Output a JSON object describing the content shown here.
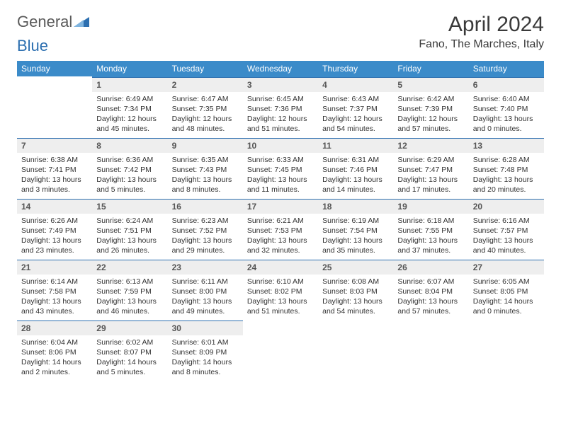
{
  "brand": {
    "general": "General",
    "blue": "Blue"
  },
  "title": "April 2024",
  "location": "Fano, The Marches, Italy",
  "colors": {
    "header_bg": "#3b8bc9",
    "header_text": "#ffffff",
    "daynum_bg": "#eeeeee",
    "daynum_text": "#555555",
    "body_text": "#333333",
    "rule": "#2c6fb0",
    "logo_gray": "#5a5a5a",
    "logo_blue": "#2c6fb0"
  },
  "weekdays": [
    "Sunday",
    "Monday",
    "Tuesday",
    "Wednesday",
    "Thursday",
    "Friday",
    "Saturday"
  ],
  "weeks": [
    [
      null,
      {
        "n": "1",
        "sr": "6:49 AM",
        "ss": "7:34 PM",
        "dl": "12 hours and 45 minutes."
      },
      {
        "n": "2",
        "sr": "6:47 AM",
        "ss": "7:35 PM",
        "dl": "12 hours and 48 minutes."
      },
      {
        "n": "3",
        "sr": "6:45 AM",
        "ss": "7:36 PM",
        "dl": "12 hours and 51 minutes."
      },
      {
        "n": "4",
        "sr": "6:43 AM",
        "ss": "7:37 PM",
        "dl": "12 hours and 54 minutes."
      },
      {
        "n": "5",
        "sr": "6:42 AM",
        "ss": "7:39 PM",
        "dl": "12 hours and 57 minutes."
      },
      {
        "n": "6",
        "sr": "6:40 AM",
        "ss": "7:40 PM",
        "dl": "13 hours and 0 minutes."
      }
    ],
    [
      {
        "n": "7",
        "sr": "6:38 AM",
        "ss": "7:41 PM",
        "dl": "13 hours and 3 minutes."
      },
      {
        "n": "8",
        "sr": "6:36 AM",
        "ss": "7:42 PM",
        "dl": "13 hours and 5 minutes."
      },
      {
        "n": "9",
        "sr": "6:35 AM",
        "ss": "7:43 PM",
        "dl": "13 hours and 8 minutes."
      },
      {
        "n": "10",
        "sr": "6:33 AM",
        "ss": "7:45 PM",
        "dl": "13 hours and 11 minutes."
      },
      {
        "n": "11",
        "sr": "6:31 AM",
        "ss": "7:46 PM",
        "dl": "13 hours and 14 minutes."
      },
      {
        "n": "12",
        "sr": "6:29 AM",
        "ss": "7:47 PM",
        "dl": "13 hours and 17 minutes."
      },
      {
        "n": "13",
        "sr": "6:28 AM",
        "ss": "7:48 PM",
        "dl": "13 hours and 20 minutes."
      }
    ],
    [
      {
        "n": "14",
        "sr": "6:26 AM",
        "ss": "7:49 PM",
        "dl": "13 hours and 23 minutes."
      },
      {
        "n": "15",
        "sr": "6:24 AM",
        "ss": "7:51 PM",
        "dl": "13 hours and 26 minutes."
      },
      {
        "n": "16",
        "sr": "6:23 AM",
        "ss": "7:52 PM",
        "dl": "13 hours and 29 minutes."
      },
      {
        "n": "17",
        "sr": "6:21 AM",
        "ss": "7:53 PM",
        "dl": "13 hours and 32 minutes."
      },
      {
        "n": "18",
        "sr": "6:19 AM",
        "ss": "7:54 PM",
        "dl": "13 hours and 35 minutes."
      },
      {
        "n": "19",
        "sr": "6:18 AM",
        "ss": "7:55 PM",
        "dl": "13 hours and 37 minutes."
      },
      {
        "n": "20",
        "sr": "6:16 AM",
        "ss": "7:57 PM",
        "dl": "13 hours and 40 minutes."
      }
    ],
    [
      {
        "n": "21",
        "sr": "6:14 AM",
        "ss": "7:58 PM",
        "dl": "13 hours and 43 minutes."
      },
      {
        "n": "22",
        "sr": "6:13 AM",
        "ss": "7:59 PM",
        "dl": "13 hours and 46 minutes."
      },
      {
        "n": "23",
        "sr": "6:11 AM",
        "ss": "8:00 PM",
        "dl": "13 hours and 49 minutes."
      },
      {
        "n": "24",
        "sr": "6:10 AM",
        "ss": "8:02 PM",
        "dl": "13 hours and 51 minutes."
      },
      {
        "n": "25",
        "sr": "6:08 AM",
        "ss": "8:03 PM",
        "dl": "13 hours and 54 minutes."
      },
      {
        "n": "26",
        "sr": "6:07 AM",
        "ss": "8:04 PM",
        "dl": "13 hours and 57 minutes."
      },
      {
        "n": "27",
        "sr": "6:05 AM",
        "ss": "8:05 PM",
        "dl": "14 hours and 0 minutes."
      }
    ],
    [
      {
        "n": "28",
        "sr": "6:04 AM",
        "ss": "8:06 PM",
        "dl": "14 hours and 2 minutes."
      },
      {
        "n": "29",
        "sr": "6:02 AM",
        "ss": "8:07 PM",
        "dl": "14 hours and 5 minutes."
      },
      {
        "n": "30",
        "sr": "6:01 AM",
        "ss": "8:09 PM",
        "dl": "14 hours and 8 minutes."
      },
      null,
      null,
      null,
      null
    ]
  ],
  "labels": {
    "sunrise": "Sunrise:",
    "sunset": "Sunset:",
    "daylight": "Daylight:"
  }
}
